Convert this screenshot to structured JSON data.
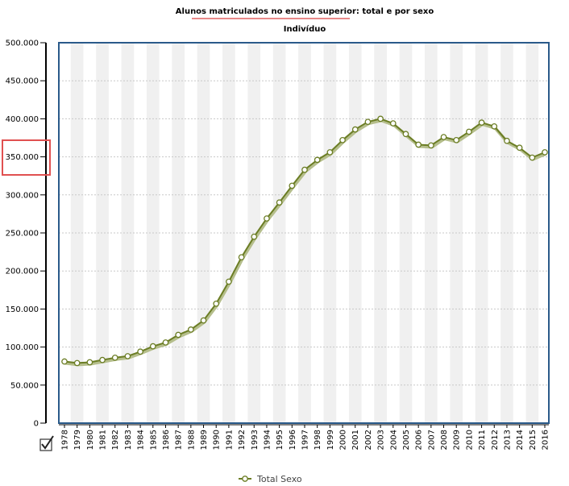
{
  "checkbox_icon": "checkbox-checked-icon",
  "colors": {
    "series": "#6b7d24",
    "series_shadow": "#b5be8c",
    "frame": "#2a5a8a",
    "band": "#f0f0f0",
    "grid": "#c8c8c8",
    "title_underline": "#e06060",
    "highlight_box": "#e05050"
  },
  "chart_data": {
    "type": "line",
    "title": "Alunos matriculados no ensino superior: total e por sexo",
    "subtitle": "Indivíduo",
    "xlabel": "",
    "ylabel": "",
    "ylim": [
      0,
      500000
    ],
    "yticks": [
      0,
      50000,
      100000,
      150000,
      200000,
      250000,
      300000,
      350000,
      400000,
      450000,
      500000
    ],
    "ytick_labels": [
      "0",
      "50.000",
      "100.000",
      "150.000",
      "200.000",
      "250.000",
      "300.000",
      "350.000",
      "400.000",
      "450.000",
      "500.000"
    ],
    "grid": true,
    "legend_position": "bottom-center",
    "x": [
      "1978",
      "1979",
      "1980",
      "1981",
      "1982",
      "1983",
      "1984",
      "1985",
      "1986",
      "1987",
      "1988",
      "1989",
      "1990",
      "1991",
      "1992",
      "1993",
      "1994",
      "1995",
      "1996",
      "1997",
      "1998",
      "1999",
      "2000",
      "2001",
      "2002",
      "2003",
      "2004",
      "2005",
      "2006",
      "2007",
      "2008",
      "2009",
      "2010",
      "2011",
      "2012",
      "2013",
      "2014",
      "2015",
      "2016"
    ],
    "series": [
      {
        "name": "Total Sexo",
        "values": [
          81000,
          79000,
          80000,
          83000,
          86000,
          88000,
          94000,
          101000,
          106000,
          116000,
          123000,
          135000,
          157000,
          186000,
          218000,
          245000,
          269000,
          290000,
          312000,
          333000,
          346000,
          356000,
          372000,
          386000,
          396000,
          400000,
          394000,
          380000,
          366000,
          365000,
          376000,
          372000,
          383000,
          395000,
          390000,
          371000,
          362000,
          349000,
          356000
        ]
      }
    ]
  }
}
